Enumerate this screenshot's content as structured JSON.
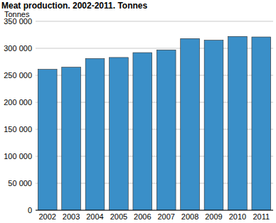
{
  "chart_data": {
    "type": "bar",
    "title": "Meat production. 2002-2011. Tonnes",
    "y_label": "Tonnes",
    "categories": [
      "2002",
      "2003",
      "2004",
      "2005",
      "2006",
      "2007",
      "2008",
      "2009",
      "2010",
      "2011"
    ],
    "values": [
      261000,
      265000,
      281000,
      283000,
      292000,
      297000,
      318000,
      315000,
      322000,
      321000
    ],
    "color": "#3a8fc8",
    "ylim": [
      0,
      350000
    ],
    "yticks": [
      0,
      {
        "value": 50000,
        "label": "50 000"
      },
      {
        "value": 100000,
        "label": "100 000"
      },
      {
        "value": 150000,
        "label": "150 000"
      },
      {
        "value": 200000,
        "label": "200 000"
      },
      {
        "value": 250000,
        "label": "250 000"
      },
      {
        "value": 300000,
        "label": "300 000"
      },
      {
        "value": 350000,
        "label": "350 000"
      }
    ],
    "grid": true
  }
}
